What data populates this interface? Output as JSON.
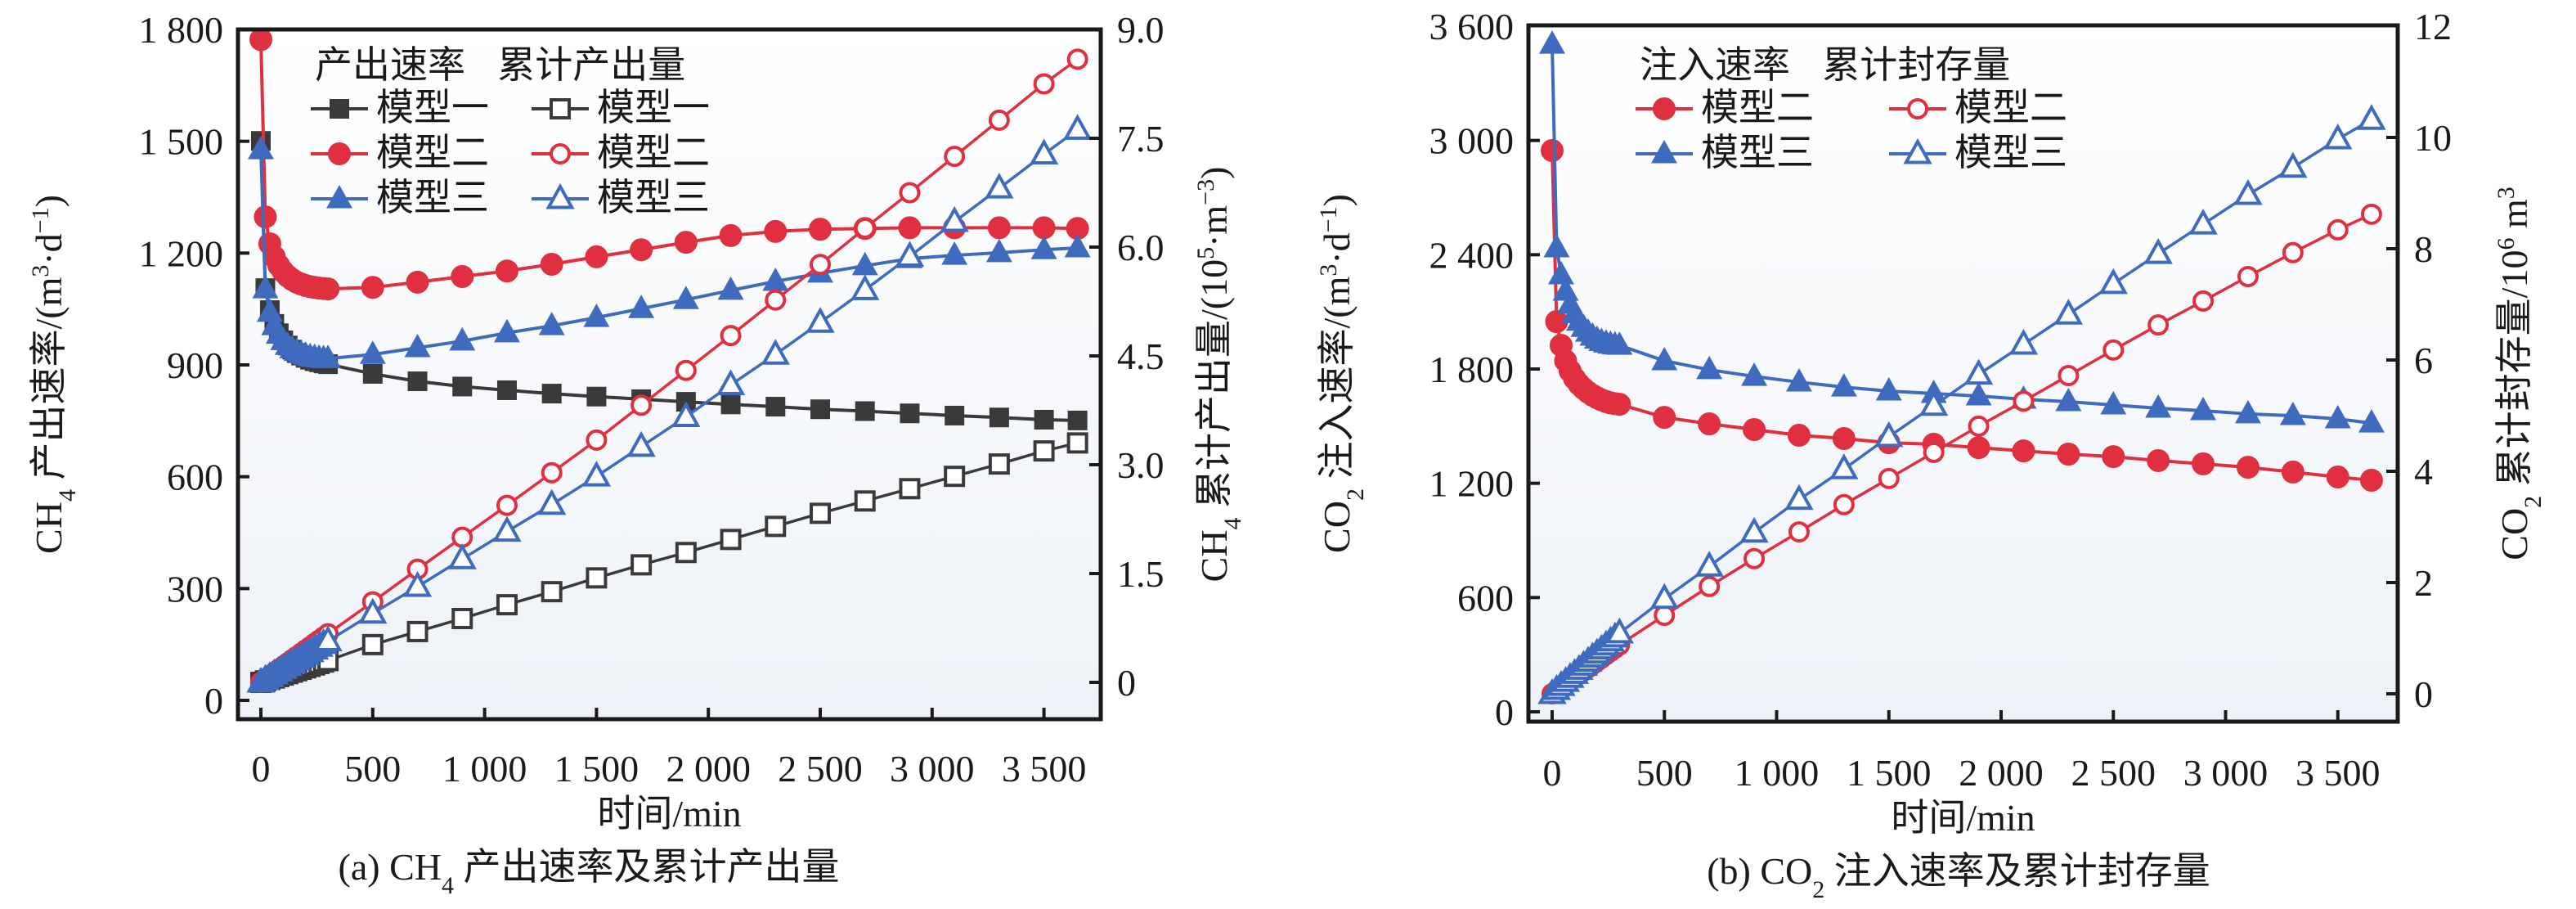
{
  "colors": {
    "model1": "#3a3a3a",
    "model2": "#e0303f",
    "model3": "#3f6bbf",
    "axis": "#1a1a1a",
    "plot_bg_top": "#ffffff",
    "plot_bg_bottom": "#eef2f8"
  },
  "chart_data": [
    {
      "id": "a",
      "type": "line",
      "caption": {
        "prefix": "(a) CH",
        "sub": "4",
        "suffix": " 产出速率及累计产出量"
      },
      "xlabel": "时间/min",
      "ylabel_left": {
        "prefix": "CH",
        "sub": "4",
        "mid": " 产出速率/(m",
        "sup1": "3",
        "mid2": "·d",
        "sup2": "−1",
        "suffix": ")"
      },
      "ylabel_right": {
        "prefix": "CH",
        "sub": "4",
        "mid": " 累计产出量/(10",
        "sup1": "5",
        "mid2": "·m",
        "sup2": "−3",
        "suffix": ")"
      },
      "xlim": [
        0,
        3800
      ],
      "ylim_left": [
        0,
        1800
      ],
      "ylim_right": [
        0,
        9.0
      ],
      "xticks": [
        0,
        500,
        1000,
        1500,
        2000,
        2500,
        3000,
        3500
      ],
      "xtick_labels": [
        "0",
        "500",
        "1 000",
        "1 500",
        "2 000",
        "2 500",
        "3 000",
        "3 500"
      ],
      "yticks_left": [
        0,
        300,
        600,
        900,
        1200,
        1500,
        1800
      ],
      "ytick_labels_left": [
        "0",
        "300",
        "600",
        "900",
        "1 200",
        "1 500",
        "1 800"
      ],
      "yticks_right": [
        0,
        1.5,
        3.0,
        4.5,
        6.0,
        7.5,
        9.0
      ],
      "ytick_labels_right": [
        "0",
        "1.5",
        "3.0",
        "4.5",
        "6.0",
        "7.5",
        "9.0"
      ],
      "legend": {
        "position": "top-left",
        "headers": [
          "产出速率",
          "累计产出量"
        ],
        "rows": [
          {
            "model": "model1",
            "left": "模型一",
            "right": "模型一"
          },
          {
            "model": "model2",
            "left": "模型二",
            "right": "模型二"
          },
          {
            "model": "model3",
            "left": "模型三",
            "right": "模型三"
          }
        ]
      },
      "x": [
        0,
        20,
        40,
        60,
        80,
        100,
        120,
        140,
        160,
        180,
        200,
        220,
        240,
        260,
        280,
        300,
        500,
        700,
        900,
        1100,
        1300,
        1500,
        1700,
        1900,
        2100,
        2300,
        2500,
        2700,
        2900,
        3100,
        3300,
        3500,
        3650
      ],
      "series": [
        {
          "name": "模型一 产出速率",
          "model": "model1",
          "axis": "left",
          "marker": "square",
          "filled": true,
          "values": [
            1501,
            1106,
            1047,
            1010,
            985,
            966,
            952,
            941,
            932,
            925,
            919,
            914,
            910,
            907,
            904,
            902,
            876,
            856,
            842,
            832,
            823,
            815,
            808,
            801,
            794,
            788,
            781,
            776,
            770,
            764,
            759,
            753,
            751
          ]
        },
        {
          "name": "模型二 产出速率",
          "model": "model2",
          "axis": "left",
          "marker": "circle",
          "filled": true,
          "values": [
            1773,
            1297,
            1225,
            1190,
            1167,
            1150,
            1138,
            1129,
            1122,
            1117,
            1113,
            1110,
            1108,
            1106,
            1105,
            1104,
            1108,
            1122,
            1137,
            1152,
            1170,
            1190,
            1209,
            1229,
            1247,
            1258,
            1264,
            1266,
            1268,
            1268,
            1268,
            1268,
            1266
          ]
        },
        {
          "name": "模型三 产出速率",
          "model": "model3",
          "axis": "left",
          "marker": "triangle",
          "filled": true,
          "values": [
            1477,
            1104,
            1041,
            1005,
            982,
            965,
            952,
            943,
            936,
            930,
            926,
            922,
            920,
            918,
            917,
            917,
            928,
            946,
            964,
            986,
            1005,
            1027,
            1051,
            1075,
            1100,
            1124,
            1146,
            1166,
            1185,
            1194,
            1201,
            1209,
            1214
          ]
        },
        {
          "name": "模型一 累计产出量",
          "model": "model1",
          "axis": "right",
          "marker": "square",
          "filled": false,
          "values": [
            0.0,
            0.02,
            0.04,
            0.06,
            0.08,
            0.1,
            0.12,
            0.14,
            0.16,
            0.18,
            0.2,
            0.22,
            0.24,
            0.26,
            0.28,
            0.3,
            0.52,
            0.7,
            0.88,
            1.07,
            1.25,
            1.44,
            1.62,
            1.79,
            1.97,
            2.15,
            2.33,
            2.5,
            2.67,
            2.84,
            3.01,
            3.19,
            3.3
          ]
        },
        {
          "name": "模型二 累计产出量",
          "model": "model2",
          "axis": "right",
          "marker": "circle",
          "filled": false,
          "values": [
            0.0,
            0.045,
            0.09,
            0.134,
            0.179,
            0.223,
            0.268,
            0.313,
            0.357,
            0.402,
            0.447,
            0.491,
            0.536,
            0.581,
            0.625,
            0.67,
            1.11,
            1.56,
            2.0,
            2.44,
            2.89,
            3.34,
            3.82,
            4.3,
            4.78,
            5.27,
            5.76,
            6.26,
            6.75,
            7.25,
            7.75,
            8.25,
            8.59
          ]
        },
        {
          "name": "模型三 累计产出量",
          "model": "model3",
          "axis": "right",
          "marker": "triangle",
          "filled": false,
          "values": [
            0.0,
            0.038,
            0.076,
            0.114,
            0.152,
            0.19,
            0.228,
            0.266,
            0.304,
            0.342,
            0.38,
            0.418,
            0.456,
            0.494,
            0.532,
            0.57,
            0.95,
            1.32,
            1.7,
            2.08,
            2.45,
            2.84,
            3.25,
            3.66,
            4.1,
            4.52,
            4.96,
            5.41,
            5.87,
            6.35,
            6.81,
            7.28,
            7.62
          ]
        }
      ]
    },
    {
      "id": "b",
      "type": "line",
      "caption": {
        "prefix": "(b) CO",
        "sub": "2",
        "suffix": " 注入速率及累计封存量"
      },
      "xlabel": "时间/min",
      "ylabel_left": {
        "prefix": "CO",
        "sub": "2",
        "mid": " 注入速率/(m",
        "sup1": "3",
        "mid2": "·d",
        "sup2": "−1",
        "suffix": ")"
      },
      "ylabel_right": {
        "prefix": "CO",
        "sub": "2",
        "mid": " 累计封存量/10",
        "sup1": "6",
        "mid2": " m",
        "sup2": "3",
        "suffix": ""
      },
      "xlim": [
        0,
        3800
      ],
      "ylim_left": [
        0,
        3600
      ],
      "ylim_right": [
        0,
        12
      ],
      "xticks": [
        0,
        500,
        1000,
        1500,
        2000,
        2500,
        3000,
        3500
      ],
      "xtick_labels": [
        "0",
        "500",
        "1 000",
        "1 500",
        "2 000",
        "2 500",
        "3 000",
        "3 500"
      ],
      "yticks_left": [
        0,
        600,
        1200,
        1800,
        2400,
        3000,
        3600
      ],
      "ytick_labels_left": [
        "0",
        "600",
        "1 200",
        "1 800",
        "2 400",
        "3 000",
        "3 600"
      ],
      "yticks_right": [
        0,
        2,
        4,
        6,
        8,
        10,
        12
      ],
      "ytick_labels_right": [
        "0",
        "2",
        "4",
        "6",
        "8",
        "10",
        "12"
      ],
      "legend": {
        "position": "top-left",
        "headers": [
          "注入速率",
          "累计封存量"
        ],
        "rows": [
          {
            "model": "model2",
            "left": "模型二",
            "right": "模型二"
          },
          {
            "model": "model3",
            "left": "模型三",
            "right": "模型三"
          }
        ]
      },
      "x": [
        0,
        20,
        40,
        60,
        80,
        100,
        120,
        140,
        160,
        180,
        200,
        220,
        240,
        260,
        280,
        300,
        500,
        700,
        900,
        1100,
        1300,
        1500,
        1700,
        1900,
        2100,
        2300,
        2500,
        2700,
        2900,
        3100,
        3300,
        3500,
        3650
      ],
      "series": [
        {
          "name": "模型二 注入速率",
          "model": "model2",
          "axis": "left",
          "marker": "circle",
          "filled": true,
          "values": [
            2947,
            2049,
            1924,
            1843,
            1790,
            1750,
            1720,
            1697,
            1678,
            1662,
            1649,
            1638,
            1629,
            1622,
            1618,
            1615,
            1546,
            1512,
            1482,
            1452,
            1435,
            1413,
            1405,
            1387,
            1370,
            1353,
            1340,
            1319,
            1302,
            1284,
            1259,
            1233,
            1216
          ]
        },
        {
          "name": "模型三 注入速率",
          "model": "model3",
          "axis": "left",
          "marker": "triangle",
          "filled": true,
          "values": [
            3505,
            2436,
            2294,
            2208,
            2140,
            2090,
            2050,
            2018,
            1993,
            1972,
            1956,
            1944,
            1936,
            1930,
            1926,
            1924,
            1843,
            1796,
            1761,
            1731,
            1705,
            1684,
            1671,
            1658,
            1641,
            1628,
            1611,
            1594,
            1581,
            1564,
            1555,
            1538,
            1516
          ]
        },
        {
          "name": "模型二 累计封存量",
          "model": "model2",
          "axis": "right",
          "marker": "circle",
          "filled": false,
          "values": [
            0.0,
            0.059,
            0.117,
            0.176,
            0.235,
            0.293,
            0.352,
            0.411,
            0.469,
            0.528,
            0.587,
            0.645,
            0.704,
            0.763,
            0.821,
            0.88,
            1.41,
            1.93,
            2.43,
            2.91,
            3.4,
            3.87,
            4.34,
            4.81,
            5.26,
            5.72,
            6.18,
            6.63,
            7.06,
            7.5,
            7.93,
            8.34,
            8.62
          ]
        },
        {
          "name": "模型三 累计封存量",
          "model": "model3",
          "axis": "right",
          "marker": "triangle",
          "filled": false,
          "values": [
            0.0,
            0.073,
            0.145,
            0.218,
            0.291,
            0.363,
            0.436,
            0.509,
            0.581,
            0.654,
            0.727,
            0.799,
            0.872,
            0.945,
            1.017,
            1.09,
            1.71,
            2.29,
            2.9,
            3.49,
            4.04,
            4.62,
            5.18,
            5.74,
            6.28,
            6.82,
            7.37,
            7.91,
            8.44,
            8.97,
            9.46,
            9.97,
            10.32
          ]
        }
      ]
    }
  ]
}
